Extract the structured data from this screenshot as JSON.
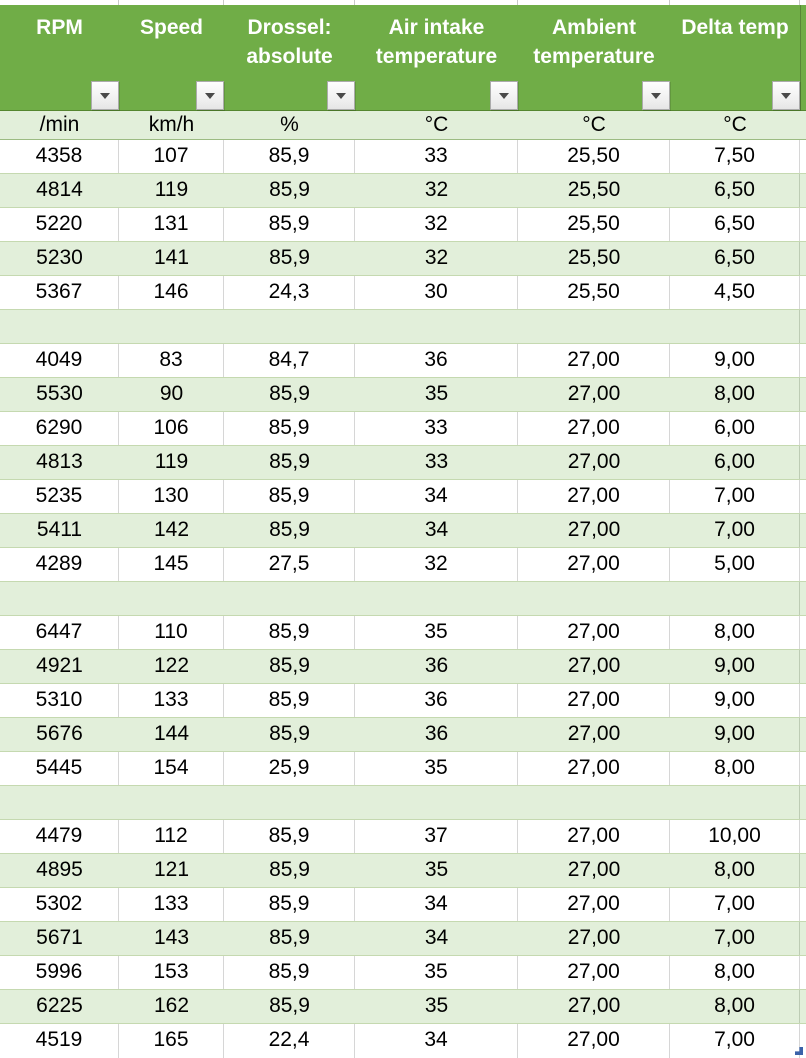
{
  "table": {
    "columns": [
      {
        "id": "rpm",
        "header_lines": [
          "RPM"
        ],
        "unit": "/min"
      },
      {
        "id": "speed",
        "header_lines": [
          "Speed"
        ],
        "unit": "km/h"
      },
      {
        "id": "throttle",
        "header_lines": [
          "Drossel:",
          "absolute"
        ],
        "unit": "%"
      },
      {
        "id": "air-intake",
        "header_lines": [
          "Air intake",
          "temperature"
        ],
        "unit": "°C"
      },
      {
        "id": "ambient",
        "header_lines": [
          "Ambient",
          "temperature"
        ],
        "unit": "°C"
      },
      {
        "id": "delta-temp",
        "header_lines": [
          "Delta temp"
        ],
        "unit": "°C"
      }
    ],
    "rows": [
      [
        "4358",
        "107",
        "85,9",
        "33",
        "25,50",
        "7,50"
      ],
      [
        "4814",
        "119",
        "85,9",
        "32",
        "25,50",
        "6,50"
      ],
      [
        "5220",
        "131",
        "85,9",
        "32",
        "25,50",
        "6,50"
      ],
      [
        "5230",
        "141",
        "85,9",
        "32",
        "25,50",
        "6,50"
      ],
      [
        "5367",
        "146",
        "24,3",
        "30",
        "25,50",
        "4,50"
      ],
      [],
      [
        "4049",
        "83",
        "84,7",
        "36",
        "27,00",
        "9,00"
      ],
      [
        "5530",
        "90",
        "85,9",
        "35",
        "27,00",
        "8,00"
      ],
      [
        "6290",
        "106",
        "85,9",
        "33",
        "27,00",
        "6,00"
      ],
      [
        "4813",
        "119",
        "85,9",
        "33",
        "27,00",
        "6,00"
      ],
      [
        "5235",
        "130",
        "85,9",
        "34",
        "27,00",
        "7,00"
      ],
      [
        "5411",
        "142",
        "85,9",
        "34",
        "27,00",
        "7,00"
      ],
      [
        "4289",
        "145",
        "27,5",
        "32",
        "27,00",
        "5,00"
      ],
      [],
      [
        "6447",
        "110",
        "85,9",
        "35",
        "27,00",
        "8,00"
      ],
      [
        "4921",
        "122",
        "85,9",
        "36",
        "27,00",
        "9,00"
      ],
      [
        "5310",
        "133",
        "85,9",
        "36",
        "27,00",
        "9,00"
      ],
      [
        "5676",
        "144",
        "85,9",
        "36",
        "27,00",
        "9,00"
      ],
      [
        "5445",
        "154",
        "25,9",
        "35",
        "27,00",
        "8,00"
      ],
      [],
      [
        "4479",
        "112",
        "85,9",
        "37",
        "27,00",
        "10,00"
      ],
      [
        "4895",
        "121",
        "85,9",
        "35",
        "27,00",
        "8,00"
      ],
      [
        "5302",
        "133",
        "85,9",
        "34",
        "27,00",
        "7,00"
      ],
      [
        "5671",
        "143",
        "85,9",
        "34",
        "27,00",
        "7,00"
      ],
      [
        "5996",
        "153",
        "85,9",
        "35",
        "27,00",
        "8,00"
      ],
      [
        "6225",
        "162",
        "85,9",
        "35",
        "27,00",
        "8,00"
      ],
      [
        "4519",
        "165",
        "22,4",
        "34",
        "27,00",
        "7,00"
      ]
    ]
  },
  "colors": {
    "header_green": "#70AD47",
    "band_green": "#E2EFDA",
    "header_text": "#FFFFFF",
    "cell_text": "#000000",
    "row_border_green": "#C5D9B0",
    "grid_gray": "#D6D6D6",
    "header_border_green": "#55862F",
    "unit_border_green": "#9CBB82",
    "button_border": "#ABABAB",
    "button_arrow": "#4A4A4A",
    "handle_blue": "#3A62A9"
  }
}
